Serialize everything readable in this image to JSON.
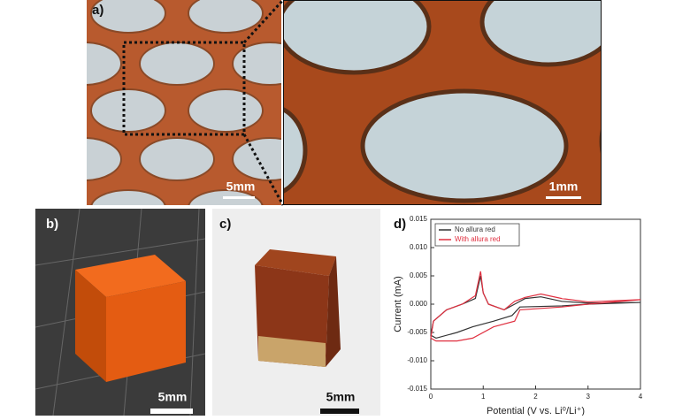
{
  "panels": {
    "a": {
      "label": "a)",
      "scale_left": "5mm",
      "scale_right": "1mm"
    },
    "b": {
      "label": "b)",
      "scale": "5mm"
    },
    "c": {
      "label": "c)",
      "scale": "5mm"
    },
    "d": {
      "label": "d)"
    }
  },
  "chart_data": {
    "type": "line",
    "x_label": "Potential (V vs. Li⁰/Li⁺)",
    "y_label": "Current (mA)",
    "xlim": [
      0,
      4
    ],
    "xticks": [
      0,
      1,
      2,
      3,
      4
    ],
    "ylim": [
      -0.015,
      0.015
    ],
    "yticks": [
      {
        "value": -0.015,
        "label": "-0.015"
      },
      {
        "value": -0.01,
        "label": "-0.010"
      },
      {
        "value": -0.005,
        "label": "-0.005"
      },
      {
        "value": 0,
        "label": "0.000"
      },
      {
        "value": 0.005,
        "label": "0.005"
      },
      {
        "value": 0.01,
        "label": "0.010"
      },
      {
        "value": 0.015,
        "label": "0.015"
      }
    ],
    "legend": "upper left",
    "series": [
      {
        "name": "No allura red",
        "color": "#333333",
        "x": [
          4,
          3,
          2.5,
          1.7,
          1.55,
          1.2,
          0.8,
          0.5,
          0.1,
          0,
          0.05,
          0.3,
          0.6,
          0.85,
          0.95,
          1.0,
          1.1,
          1.4,
          1.6,
          1.8,
          2.1,
          2.5,
          3,
          4
        ],
        "values": [
          0.0003,
          0.0,
          -0.0003,
          -0.0005,
          -0.002,
          -0.003,
          -0.004,
          -0.005,
          -0.006,
          -0.0055,
          -0.003,
          -0.001,
          0.0,
          0.001,
          0.005,
          0.002,
          0.0,
          -0.001,
          0.0,
          0.001,
          0.0013,
          0.0005,
          0.0002,
          0.0003
        ]
      },
      {
        "name": "With allura red",
        "color": "#e03040",
        "x": [
          4,
          3,
          2.5,
          1.7,
          1.6,
          1.2,
          0.8,
          0.5,
          0.1,
          0,
          0.05,
          0.3,
          0.6,
          0.85,
          0.95,
          1.0,
          1.1,
          1.4,
          1.6,
          1.8,
          2.1,
          2.5,
          3,
          4
        ],
        "values": [
          0.0008,
          0.0,
          -0.0005,
          -0.001,
          -0.003,
          -0.004,
          -0.006,
          -0.0065,
          -0.0065,
          -0.006,
          -0.003,
          -0.001,
          0.0,
          0.0015,
          0.0058,
          0.002,
          0.0,
          -0.001,
          0.0005,
          0.0012,
          0.0018,
          0.001,
          0.0004,
          0.0008
        ]
      }
    ]
  }
}
